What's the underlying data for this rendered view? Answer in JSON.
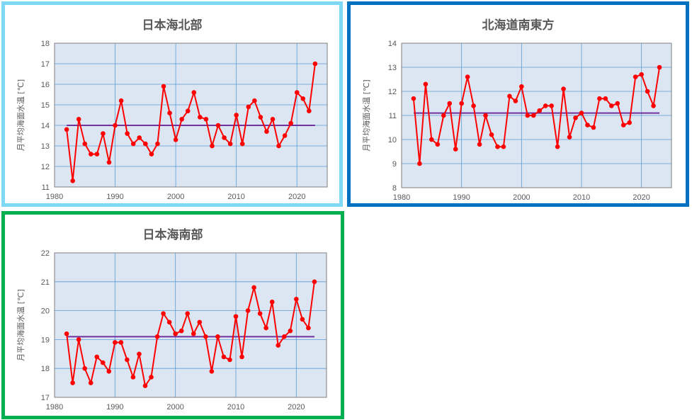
{
  "chart_data": [
    {
      "type": "line",
      "title": "日本海北部",
      "ylabel": "月平均海面水温 [℃]",
      "xlim": [
        1980,
        2025
      ],
      "ylim": [
        11,
        18
      ],
      "xticks": [
        1980,
        1990,
        2000,
        2010,
        2020
      ],
      "yticks": [
        11,
        12,
        13,
        14,
        15,
        16,
        17,
        18
      ],
      "grid": true,
      "border_color": "#7fd8f6",
      "series": [
        {
          "color": "#ff0000",
          "x": [
            1982,
            1983,
            1984,
            1985,
            1986,
            1987,
            1988,
            1989,
            1990,
            1991,
            1992,
            1993,
            1994,
            1995,
            1996,
            1997,
            1998,
            1999,
            2000,
            2001,
            2002,
            2003,
            2004,
            2005,
            2006,
            2007,
            2008,
            2009,
            2010,
            2011,
            2012,
            2013,
            2014,
            2015,
            2016,
            2017,
            2018,
            2019,
            2020,
            2021,
            2022,
            2023
          ],
          "values": [
            13.8,
            11.3,
            14.3,
            13.1,
            12.6,
            12.6,
            13.6,
            12.2,
            14.0,
            15.2,
            13.6,
            13.1,
            13.4,
            13.1,
            12.6,
            13.1,
            15.9,
            14.6,
            13.3,
            14.3,
            14.7,
            15.6,
            14.4,
            14.3,
            13.0,
            14.0,
            13.4,
            13.1,
            14.5,
            13.1,
            14.9,
            15.2,
            14.4,
            13.7,
            14.3,
            13.0,
            13.5,
            14.1,
            15.6,
            15.3,
            14.7,
            17.0
          ]
        }
      ],
      "reference_line": {
        "value": 14.0,
        "x_range": [
          1982,
          2023
        ],
        "color": "#7030a0"
      }
    },
    {
      "type": "line",
      "title": "北海道南東方",
      "ylabel": "月平均海面水温 [℃]",
      "xlim": [
        1980,
        2025
      ],
      "ylim": [
        8,
        14
      ],
      "xticks": [
        1980,
        1990,
        2000,
        2010,
        2020
      ],
      "yticks": [
        8,
        9,
        10,
        11,
        12,
        13,
        14
      ],
      "grid": true,
      "border_color": "#0070c0",
      "series": [
        {
          "color": "#ff0000",
          "x": [
            1982,
            1983,
            1984,
            1985,
            1986,
            1987,
            1988,
            1989,
            1990,
            1991,
            1992,
            1993,
            1994,
            1995,
            1996,
            1997,
            1998,
            1999,
            2000,
            2001,
            2002,
            2003,
            2004,
            2005,
            2006,
            2007,
            2008,
            2009,
            2010,
            2011,
            2012,
            2013,
            2014,
            2015,
            2016,
            2017,
            2018,
            2019,
            2020,
            2021,
            2022,
            2023
          ],
          "values": [
            11.7,
            9.0,
            12.3,
            10.0,
            9.8,
            11.0,
            11.5,
            9.6,
            11.5,
            12.6,
            11.4,
            9.8,
            11.0,
            10.2,
            9.7,
            9.7,
            11.8,
            11.6,
            12.2,
            11.0,
            11.0,
            11.2,
            11.4,
            11.4,
            9.7,
            12.1,
            10.1,
            10.9,
            11.1,
            10.6,
            10.5,
            11.7,
            11.7,
            11.4,
            11.5,
            10.6,
            10.7,
            12.6,
            12.7,
            12.0,
            11.4,
            13.0
          ]
        }
      ],
      "reference_line": {
        "value": 11.1,
        "x_range": [
          1982,
          2023
        ],
        "color": "#7030a0"
      }
    },
    {
      "type": "line",
      "title": "日本海南部",
      "ylabel": "月平均海面水温 [℃]",
      "xlim": [
        1980,
        2025
      ],
      "ylim": [
        17,
        22
      ],
      "xticks": [
        1980,
        1990,
        2000,
        2010,
        2020
      ],
      "yticks": [
        17,
        18,
        19,
        20,
        21,
        22
      ],
      "grid": true,
      "border_color": "#00b050",
      "series": [
        {
          "color": "#ff0000",
          "x": [
            1982,
            1983,
            1984,
            1985,
            1986,
            1987,
            1988,
            1989,
            1990,
            1991,
            1992,
            1993,
            1994,
            1995,
            1996,
            1997,
            1998,
            1999,
            2000,
            2001,
            2002,
            2003,
            2004,
            2005,
            2006,
            2007,
            2008,
            2009,
            2010,
            2011,
            2012,
            2013,
            2014,
            2015,
            2016,
            2017,
            2018,
            2019,
            2020,
            2021,
            2022,
            2023
          ],
          "values": [
            19.2,
            17.5,
            19.0,
            18.0,
            17.5,
            18.4,
            18.2,
            17.9,
            18.9,
            18.9,
            18.3,
            17.7,
            18.5,
            17.4,
            17.7,
            19.1,
            19.9,
            19.6,
            19.2,
            19.3,
            19.9,
            19.2,
            19.6,
            19.1,
            17.9,
            19.1,
            18.4,
            18.3,
            19.8,
            18.4,
            20.0,
            20.8,
            19.9,
            19.4,
            20.3,
            18.8,
            19.1,
            19.3,
            20.4,
            19.7,
            19.4,
            21.0
          ]
        }
      ],
      "reference_line": {
        "value": 19.1,
        "x_range": [
          1982,
          2023
        ],
        "color": "#7030a0"
      }
    }
  ]
}
